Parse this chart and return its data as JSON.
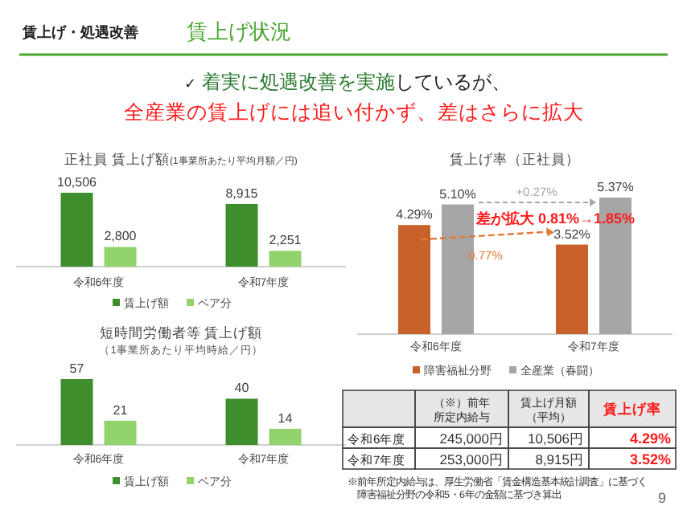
{
  "chart_data": [
    {
      "type": "other",
      "title": "賃上げ状況",
      "annotations": [
        "賃上げ・処遇改善",
        "✓",
        "着実に処遇改善を実施",
        "しているが、",
        "全産業の賃上げには追い付かず、差はさらに拡大",
        "9"
      ]
    },
    {
      "type": "bar",
      "title": "正社員 賃上げ額",
      "subtitle": "(1事業所あたり平均月額／円)",
      "categories": [
        "令和6年度",
        "令和7年度"
      ],
      "legend": "bottom",
      "series": [
        {
          "name": "賃上げ額",
          "color": "#3e8e2e",
          "values": [
            10506,
            8915
          ],
          "value_labels": [
            "10,506",
            "8,915"
          ]
        },
        {
          "name": "ベア分",
          "color": "#92d36e",
          "values": [
            2800,
            2251
          ],
          "value_labels": [
            "2,800",
            "2,251"
          ]
        }
      ]
    },
    {
      "type": "bar",
      "title": "短時間労働者等 賃上げ額",
      "subtitle": "（1事業所あたり平均時給／円）",
      "categories": [
        "令和6年度",
        "令和7年度"
      ],
      "legend": "bottom",
      "data_labels": true,
      "series": [
        {
          "name": "賃上げ額",
          "color": "#3e8e2e",
          "values": [
            57,
            40
          ]
        },
        {
          "name": "ベア分",
          "color": "#92d36e",
          "values": [
            21,
            14
          ]
        }
      ]
    },
    {
      "type": "bar",
      "title": "賃上げ率（正社員）",
      "categories": [
        "令和6年度",
        "令和7年度"
      ],
      "legend": "bottom",
      "series": [
        {
          "name": "障害福祉分野",
          "color": "#c8622a",
          "values": [
            4.29,
            3.52
          ],
          "value_labels": [
            "4.29%",
            "3.52%"
          ]
        },
        {
          "name": "全産業（春闘）",
          "color": "#a6a6a6",
          "values": [
            5.1,
            5.37
          ],
          "value_labels": [
            "5.10%",
            "5.37%"
          ]
        }
      ],
      "annotations": [
        "+0.27%",
        "-0.77%",
        "差が拡大 0.81%→1.85%"
      ]
    },
    {
      "type": "other",
      "annotations": [
        "（※）前年",
        "所定内給与",
        "賃上げ月額",
        "（平均）",
        "賃上げ率",
        "令和6年度",
        "245,000円",
        "10,506円",
        "4.29%",
        "令和7年度",
        "253,000円",
        "8,915円",
        "3.52%",
        "※前年所定内給与は、厚生労働省「賃金構造基本統計調査」に基づく",
        "障害福祉分野の令和5・6年の金額に基づき算出"
      ]
    }
  ]
}
